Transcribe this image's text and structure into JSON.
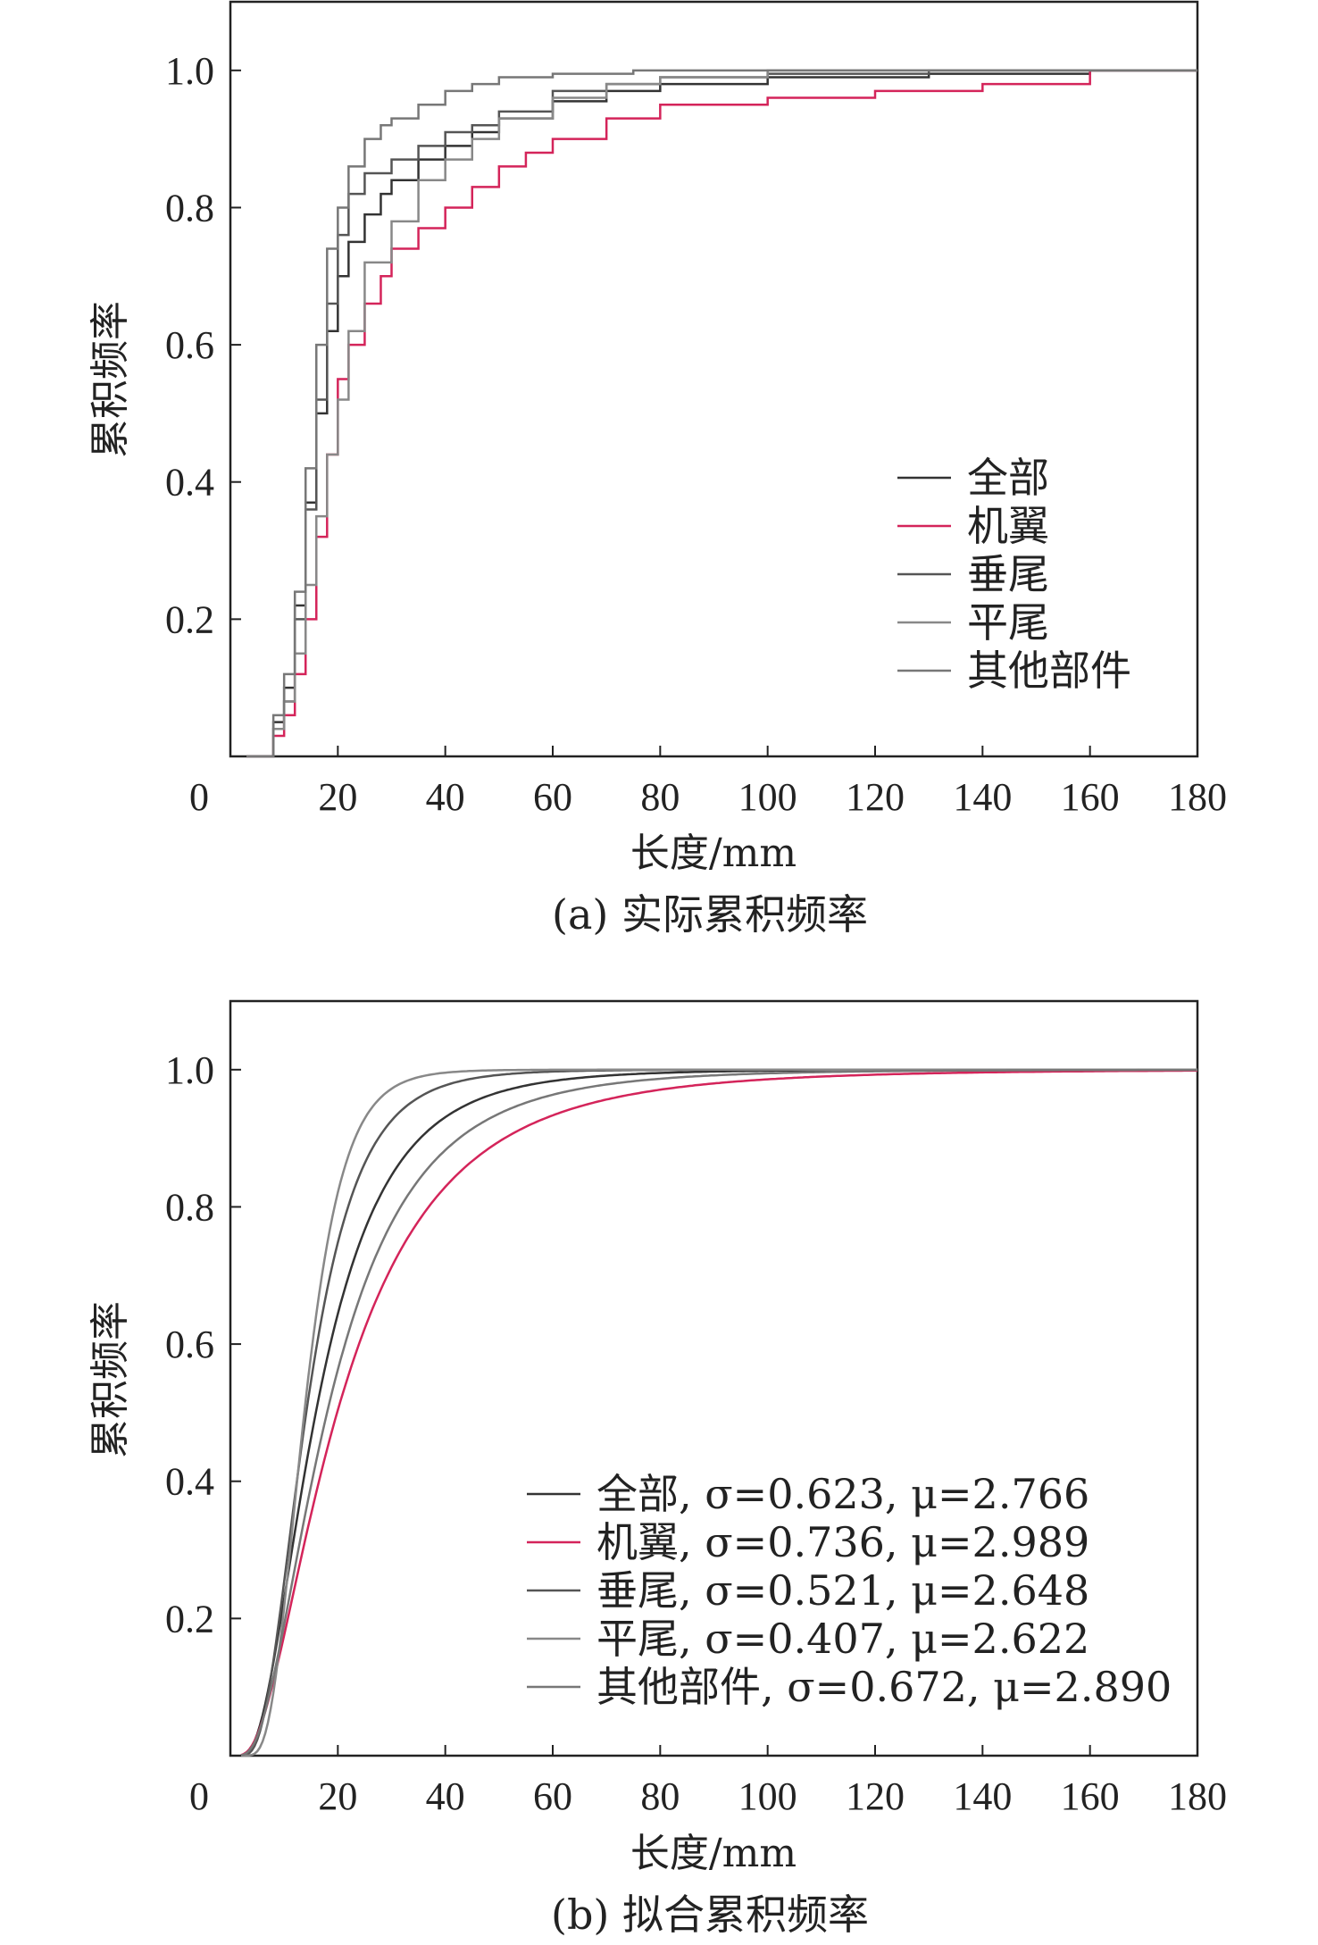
{
  "chart_data": [
    {
      "type": "line",
      "step": true,
      "caption": "(a) 实际累积频率",
      "xlabel": "长度/mm",
      "ylabel": "累积频率",
      "xlim": [
        0,
        180
      ],
      "ylim": [
        0,
        1.1
      ],
      "x_ticks": [
        "0",
        "20",
        "40",
        "60",
        "80",
        "100",
        "120",
        "140",
        "160",
        "180"
      ],
      "y_ticks": [
        "0.2",
        "0.4",
        "0.6",
        "0.8",
        "1.0"
      ],
      "grid": false,
      "legend_position": "lower-right",
      "series": [
        {
          "name": "全部",
          "color": "#333333",
          "x": [
            3,
            8,
            10,
            12,
            14,
            16,
            18,
            20,
            22,
            25,
            28,
            30,
            35,
            40,
            45,
            50,
            60,
            70,
            80,
            100,
            130,
            160,
            180
          ],
          "y": [
            0,
            0.05,
            0.1,
            0.22,
            0.37,
            0.5,
            0.62,
            0.7,
            0.75,
            0.79,
            0.82,
            0.84,
            0.87,
            0.89,
            0.91,
            0.93,
            0.955,
            0.97,
            0.98,
            0.99,
            0.995,
            1.0,
            1.0
          ]
        },
        {
          "name": "机翼",
          "color": "#d4245a",
          "x": [
            3,
            8,
            10,
            12,
            14,
            16,
            18,
            20,
            22,
            25,
            28,
            30,
            35,
            40,
            45,
            50,
            55,
            60,
            70,
            80,
            100,
            120,
            140,
            160,
            180
          ],
          "y": [
            0,
            0.03,
            0.06,
            0.12,
            0.2,
            0.32,
            0.44,
            0.55,
            0.6,
            0.66,
            0.7,
            0.74,
            0.77,
            0.8,
            0.83,
            0.86,
            0.88,
            0.9,
            0.93,
            0.95,
            0.96,
            0.97,
            0.98,
            1.0,
            1.0
          ]
        },
        {
          "name": "垂尾",
          "color": "#555555",
          "x": [
            3,
            8,
            10,
            12,
            14,
            16,
            18,
            20,
            22,
            25,
            30,
            35,
            40,
            45,
            50,
            60,
            70,
            80,
            100,
            130,
            160,
            180
          ],
          "y": [
            0,
            0.04,
            0.08,
            0.2,
            0.36,
            0.52,
            0.66,
            0.76,
            0.82,
            0.85,
            0.87,
            0.89,
            0.91,
            0.92,
            0.94,
            0.97,
            0.98,
            0.99,
            0.995,
            1.0,
            1.0,
            1.0
          ]
        },
        {
          "name": "平尾",
          "color": "#888888",
          "x": [
            3,
            8,
            10,
            12,
            14,
            16,
            18,
            20,
            22,
            25,
            30,
            35,
            40,
            45,
            50,
            60,
            70,
            80,
            100,
            130,
            160,
            180
          ],
          "y": [
            0,
            0.04,
            0.08,
            0.15,
            0.25,
            0.35,
            0.44,
            0.52,
            0.62,
            0.72,
            0.78,
            0.84,
            0.87,
            0.9,
            0.93,
            0.96,
            0.98,
            0.99,
            1.0,
            1.0,
            1.0,
            1.0
          ]
        },
        {
          "name": "其他部件",
          "color": "#777777",
          "x": [
            3,
            8,
            10,
            12,
            14,
            16,
            18,
            20,
            22,
            25,
            28,
            30,
            35,
            40,
            45,
            50,
            60,
            75,
            90,
            180
          ],
          "y": [
            0,
            0.06,
            0.12,
            0.24,
            0.42,
            0.6,
            0.74,
            0.8,
            0.86,
            0.9,
            0.92,
            0.93,
            0.95,
            0.97,
            0.98,
            0.99,
            0.995,
            1.0,
            1.0,
            1.0
          ]
        }
      ]
    },
    {
      "type": "line",
      "step": false,
      "caption": "(b) 拟合累积频率",
      "xlabel": "长度/mm",
      "ylabel": "累积频率",
      "xlim": [
        0,
        180
      ],
      "ylim": [
        0,
        1.1
      ],
      "x_ticks": [
        "0",
        "20",
        "40",
        "60",
        "80",
        "100",
        "120",
        "140",
        "160",
        "180"
      ],
      "y_ticks": [
        "0.2",
        "0.4",
        "0.6",
        "0.8",
        "1.0"
      ],
      "grid": false,
      "legend_position": "lower-right",
      "series": [
        {
          "name": "全部",
          "params": ", σ=0.623, μ=2.766",
          "sigma": 0.623,
          "mu": 2.766,
          "color": "#333333"
        },
        {
          "name": "机翼",
          "params": ", σ=0.736, μ=2.989",
          "sigma": 0.736,
          "mu": 2.989,
          "color": "#d4245a"
        },
        {
          "name": "垂尾",
          "params": ", σ=0.521, μ=2.648",
          "sigma": 0.521,
          "mu": 2.648,
          "color": "#555555"
        },
        {
          "name": "平尾",
          "params": ", σ=0.407, μ=2.622",
          "sigma": 0.407,
          "mu": 2.622,
          "color": "#888888"
        },
        {
          "name": "其他部件",
          "params": ", σ=0.672, μ=2.890",
          "sigma": 0.672,
          "mu": 2.89,
          "color": "#777777"
        }
      ]
    }
  ]
}
